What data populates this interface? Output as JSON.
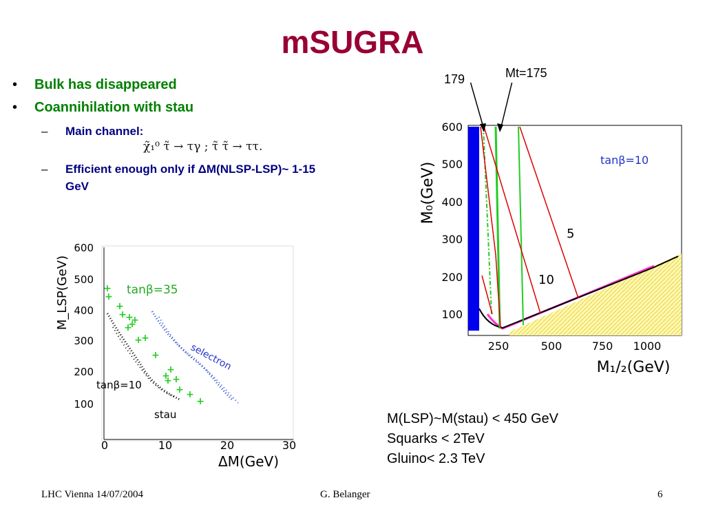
{
  "title": "mSUGRA",
  "bullets": [
    {
      "text": "Bulk has disappeared"
    },
    {
      "text": "Coannihilation with stau"
    }
  ],
  "subbullets": [
    {
      "text": "Main channel:"
    },
    {
      "text": "Efficient enough only if ΔM(NLSP-LSP)~ 1-15 GeV"
    }
  ],
  "formula": "χ̃₁⁰ τ̃ → τγ ;  τ̃ τ̃ → ττ.",
  "right_plot": {
    "annotations": {
      "mt175": "Mt=175",
      "mt179": "179",
      "tanb": "tanβ=10",
      "five": "5",
      "ten": "10"
    },
    "y_axis_label": "M₀(GeV)",
    "x_axis_label": "M₁/₂(GeV)",
    "y_ticks": [
      "600",
      "500",
      "400",
      "300",
      "200",
      "100"
    ],
    "x_ticks": [
      "250",
      "500",
      "750",
      "1000"
    ]
  },
  "left_plot": {
    "annotations": {
      "tanb35": "tanβ=35",
      "tanb10": "tanβ=10",
      "selectron": "selectron",
      "stau": "stau"
    },
    "y_axis_label": "M_LSP(GeV)",
    "x_axis_label": "ΔM(GeV)",
    "y_ticks": [
      "600",
      "500",
      "400",
      "300",
      "200",
      "100"
    ],
    "x_ticks": [
      "0",
      "10",
      "20",
      "30"
    ]
  },
  "summary": [
    {
      "text": "M(LSP)~M(stau)  < 450 GeV"
    },
    {
      "text": "Squarks < 2TeV"
    },
    {
      "text": "Gluino< 2.3 TeV"
    }
  ],
  "footer": {
    "left": "LHC Vienna 14/07/2004",
    "center": "G. Belanger",
    "right": "6"
  },
  "colors": {
    "title": "#990033",
    "bullet": "#008000",
    "subbullet": "#000080"
  }
}
